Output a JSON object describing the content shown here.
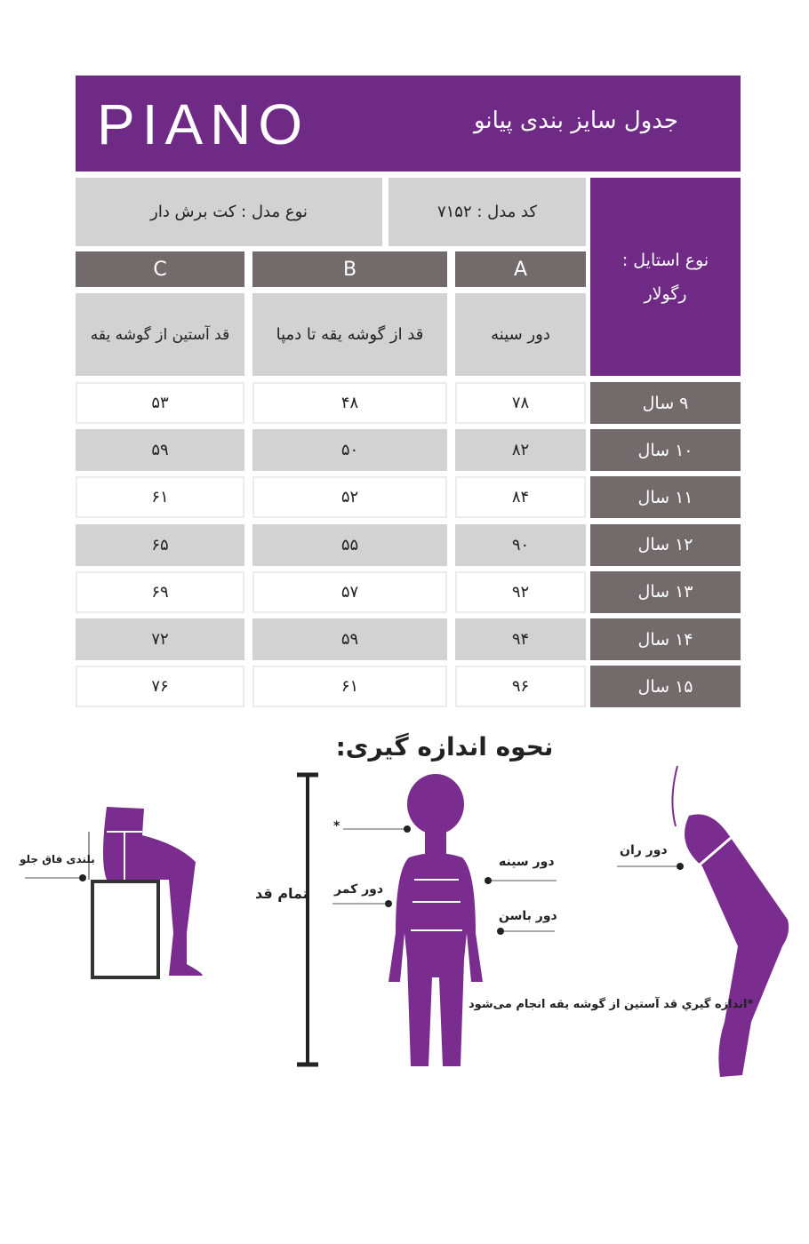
{
  "header": {
    "logo": "PIANO",
    "title": "جدول سایز بندی پیانو"
  },
  "info": {
    "model_type": "نوع مدل : کت برش دار",
    "model_code": "کد مدل : ۷۱۵۲",
    "style_label": "نوع استایل :",
    "style_value": "رگولار"
  },
  "columns": [
    {
      "letter": "A",
      "desc": "دور سینه"
    },
    {
      "letter": "B",
      "desc": "قد از گوشه یقه تا دمپا"
    },
    {
      "letter": "C",
      "desc": "قد آستین از گوشه یقه"
    }
  ],
  "rows": [
    {
      "age": "۹ سال",
      "a": "۷۸",
      "b": "۴۸",
      "c": "۵۳"
    },
    {
      "age": "۱۰ سال",
      "a": "۸۲",
      "b": "۵۰",
      "c": "۵۹"
    },
    {
      "age": "۱۱ سال",
      "a": "۸۴",
      "b": "۵۲",
      "c": "۶۱"
    },
    {
      "age": "۱۲ سال",
      "a": "۹۰",
      "b": "۵۵",
      "c": "۶۵"
    },
    {
      "age": "۱۳ سال",
      "a": "۹۲",
      "b": "۵۷",
      "c": "۶۹"
    },
    {
      "age": "۱۴ سال",
      "a": "۹۴",
      "b": "۵۹",
      "c": "۷۲"
    },
    {
      "age": "۱۵ سال",
      "a": "۹۶",
      "b": "۶۱",
      "c": "۷۶"
    }
  ],
  "howto": {
    "title": "نحوه اندازه گیری:",
    "front_rise": "بلندی فاق جلو",
    "full_height": "تمام قد",
    "star": "*",
    "waist": "دور کمر",
    "chest": "دور سینه",
    "hip": "دور باسن",
    "thigh": "دور ران",
    "note": "*اندازه گيري قد آستين از گوشه يقه انجام می‌شود"
  },
  "colors": {
    "purple": "#6f2a85",
    "dark_gray": "#736a6b",
    "light_gray": "#d3d2d3"
  }
}
